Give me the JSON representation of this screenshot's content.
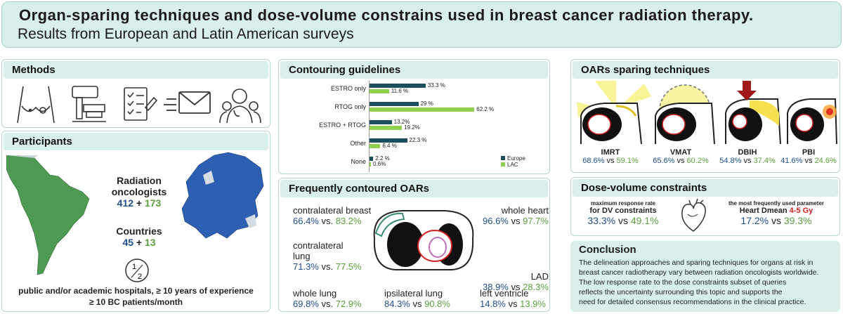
{
  "header": {
    "title": "Organ-sparing techniques and dose-volume constrains used in breast cancer radiation therapy.",
    "subtitle": "Results from European and Latin American surveys"
  },
  "methods": {
    "title": "Methods",
    "icons": [
      "breast-exam-icon",
      "linac-icon",
      "checklist-icon",
      "email-icon",
      "doctors-icon"
    ]
  },
  "participants": {
    "title": "Participants",
    "oncologists_label": "Radiation oncologists",
    "oncologists_eu": "412",
    "oncologists_plus": " + ",
    "oncologists_lac": "173",
    "countries_label": "Countries",
    "countries_eu": "45",
    "countries_plus": " + ",
    "countries_lac": "13",
    "footer1": "public and/or academic hospitals, ≥ 10 years of experience",
    "footer2": "≥ 10 BC patients/month",
    "colors": {
      "europe": "#2d5fb3",
      "lac": "#4f9a52"
    }
  },
  "contouring": {
    "title": "Contouring guidelines",
    "legend": [
      "Europe",
      "LAC"
    ],
    "colors": {
      "Europe": "#1c4f5c",
      "LAC": "#8fd14f"
    }
  },
  "chart_data": {
    "type": "bar",
    "categories": [
      "ESTRO only",
      "RTOG only",
      "ESTRO + RTOG",
      "Other",
      "None"
    ],
    "series": [
      {
        "name": "Europe",
        "values": [
          33.3,
          29,
          13.2,
          22.3,
          2.2
        ]
      },
      {
        "name": "LAC",
        "values": [
          11.6,
          62.2,
          19.2,
          6.4,
          0.6
        ]
      }
    ],
    "labels": [
      [
        "33.3 %",
        "11.6 %"
      ],
      [
        "29 %",
        "62.2 %"
      ],
      [
        "13.2%",
        "19.2%"
      ],
      [
        "22.3 %",
        "6.4 %"
      ],
      [
        "2.2 %",
        "0.6%"
      ]
    ]
  },
  "oars": {
    "title": "Frequently contoured OARs",
    "items": [
      {
        "name": "contralateral breast",
        "eu": "66.4%",
        "vs": " vs. ",
        "lac": "83.2%"
      },
      {
        "name": "whole heart",
        "eu": "96.6%",
        "vs": " vs ",
        "lac": "97.7%"
      },
      {
        "name": "contralateral lung",
        "eu": "71.3%",
        "vs": " vs. ",
        "lac": "77.5%"
      },
      {
        "name": "LAD",
        "eu": "38.9%",
        "vs": " vs ",
        "lac": "28.3%"
      },
      {
        "name": "whole lung",
        "eu": "69.8%",
        "vs": " vs. ",
        "lac": "72.9%"
      },
      {
        "name": "ipsilateral lung",
        "eu": "84.3%",
        "vs": " vs ",
        "lac": "90.8%"
      },
      {
        "name": "left ventricle",
        "eu": "14.8%",
        "vs": " vs ",
        "lac": "13.9%"
      }
    ]
  },
  "techniques": {
    "title": "OARs sparing techniques",
    "items": [
      {
        "name": "IMRT",
        "eu": "68.6%",
        "vs": " vs ",
        "lac": "59.1%"
      },
      {
        "name": "VMAT",
        "eu": "65.6%",
        "vs": " vs ",
        "lac": "60.2%"
      },
      {
        "name": "DBIH",
        "eu": "54.8%",
        "vs": " vs ",
        "lac": "37.4%"
      },
      {
        "name": "PBI",
        "eu": "41.6%",
        "vs": " vs ",
        "lac": "24.6%"
      }
    ]
  },
  "dvc": {
    "title": "Dose-volume constraints",
    "left_line1": "maximum response rate",
    "left_line2": "for DV constraints",
    "left_eu": "33.3%",
    "left_vs": " vs ",
    "left_lac": "49.1%",
    "right_line1": "the most frequently used parameter",
    "right_line2": "Heart Dmean ",
    "right_highlight": "4-5 Gy",
    "right_eu": "17.2%",
    "right_vs": " vs ",
    "right_lac": "39.3%"
  },
  "conclusion": {
    "title": "Conclusion",
    "lines": [
      "The delineation approaches and sparing techniques for organs at risk in",
      "breast cancer radiotherapy vary between radiation oncologists worldwide.",
      "The low response rate to the dose constraints subset of queries",
      "reflects the uncertainty surrounding this topic and supports the",
      "need for detailed consensus recommendations in the clinical practice."
    ]
  }
}
